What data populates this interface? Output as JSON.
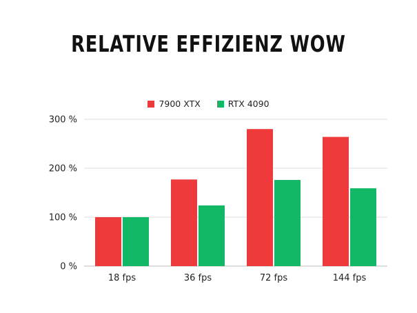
{
  "chart_data": {
    "type": "bar",
    "title": "RELATIVE EFFIZIENZ WOW",
    "categories": [
      "18 fps",
      "36 fps",
      "72 fps",
      "144 fps"
    ],
    "series": [
      {
        "name": "7900 XTX",
        "color": "#ef3a3c",
        "values": [
          100,
          177,
          280,
          264
        ]
      },
      {
        "name": "RTX 4090",
        "color": "#12b865",
        "values": [
          100,
          124,
          176,
          159
        ]
      }
    ],
    "y_ticks": [
      "0 %",
      "100 %",
      "200 %",
      "300 %"
    ],
    "ylim": [
      0,
      300
    ],
    "grid": true,
    "legend_position": "top-center",
    "xlabel": "",
    "ylabel": ""
  }
}
